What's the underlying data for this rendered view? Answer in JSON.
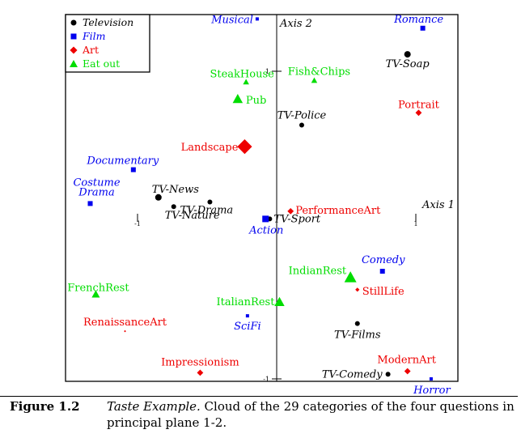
{
  "chart_data": {
    "type": "scatter",
    "title": "",
    "axis_labels": {
      "axis1": "Axis 1",
      "axis2": "Axis 2"
    },
    "ticks": {
      "x": [
        "-1",
        "1"
      ],
      "y": [
        "1",
        "-1"
      ]
    },
    "legend": {
      "placement": "top-left",
      "entries": [
        {
          "name": "Television",
          "color": "#000000",
          "shape": "circle"
        },
        {
          "name": "Film",
          "color": "#0000ee",
          "shape": "square"
        },
        {
          "name": "Art",
          "color": "#ee0000",
          "shape": "diamond"
        },
        {
          "name": "Eat out",
          "color": "#00dd00",
          "shape": "triangle"
        }
      ]
    },
    "series": [
      {
        "name": "Television",
        "points": [
          {
            "label": "TV-Soap",
            "x": 0.94,
            "y": 1.11,
            "size": 4
          },
          {
            "label": "TV-Police",
            "x": 0.18,
            "y": 0.65,
            "size": 3
          },
          {
            "label": "TV-News",
            "x": -0.85,
            "y": 0.18,
            "size": 4
          },
          {
            "label": "TV-Drama",
            "x": -0.48,
            "y": 0.15,
            "size": 3
          },
          {
            "label": "TV-Nature",
            "x": -0.74,
            "y": 0.12,
            "size": 3
          },
          {
            "label": "TV-Sport",
            "x": -0.05,
            "y": 0.04,
            "size": 3
          },
          {
            "label": "TV-Films",
            "x": 0.58,
            "y": -0.64,
            "size": 3
          },
          {
            "label": "TV-Comedy",
            "x": 0.8,
            "y": -0.97,
            "size": 3
          }
        ]
      },
      {
        "name": "Film",
        "points": [
          {
            "label": "Musical",
            "x": -0.14,
            "y": 1.34,
            "size": 2
          },
          {
            "label": "Romance",
            "x": 1.05,
            "y": 1.28,
            "size": 3
          },
          {
            "label": "Documentary",
            "x": -1.03,
            "y": 0.36,
            "size": 3
          },
          {
            "label": "Costume Drama",
            "x": -1.34,
            "y": 0.14,
            "size": 3
          },
          {
            "label": "Action",
            "x": -0.08,
            "y": 0.04,
            "size": 4
          },
          {
            "label": "Comedy",
            "x": 0.76,
            "y": -0.3,
            "size": 3
          },
          {
            "label": "SciFi",
            "x": -0.21,
            "y": -0.59,
            "size": 2
          },
          {
            "label": "Horror",
            "x": 1.11,
            "y": -1.0,
            "size": 2
          }
        ]
      },
      {
        "name": "Art",
        "points": [
          {
            "label": "Landscape",
            "x": -0.23,
            "y": 0.51,
            "size": 7
          },
          {
            "label": "Portrait",
            "x": 1.02,
            "y": 0.73,
            "size": 3
          },
          {
            "label": "PerformanceArt",
            "x": 0.1,
            "y": 0.09,
            "size": 3
          },
          {
            "label": "StillLife",
            "x": 0.58,
            "y": -0.42,
            "size": 2
          },
          {
            "label": "RenaissanceArt",
            "x": -1.09,
            "y": -0.69,
            "size": 1
          },
          {
            "label": "Impressionism",
            "x": -0.55,
            "y": -0.96,
            "size": 3
          },
          {
            "label": "ModernArt",
            "x": 0.94,
            "y": -0.95,
            "size": 3
          }
        ]
      },
      {
        "name": "Eat out",
        "points": [
          {
            "label": "SteakHouse",
            "x": -0.22,
            "y": 0.93,
            "size": 3
          },
          {
            "label": "Fish&Chips",
            "x": 0.27,
            "y": 0.94,
            "size": 3
          },
          {
            "label": "Pub",
            "x": -0.28,
            "y": 0.82,
            "size": 5
          },
          {
            "label": "IndianRest",
            "x": 0.53,
            "y": -0.34,
            "size": 6
          },
          {
            "label": "ItalianRest",
            "x": 0.02,
            "y": -0.5,
            "size": 5
          },
          {
            "label": "FrenchRest",
            "x": -1.3,
            "y": -0.45,
            "size": 4
          }
        ]
      }
    ]
  },
  "caption": {
    "number": "Figure 1.2",
    "title": "Taste Example.",
    "text": " Cloud of the 29 categories of the four questions in principal plane 1-2."
  }
}
